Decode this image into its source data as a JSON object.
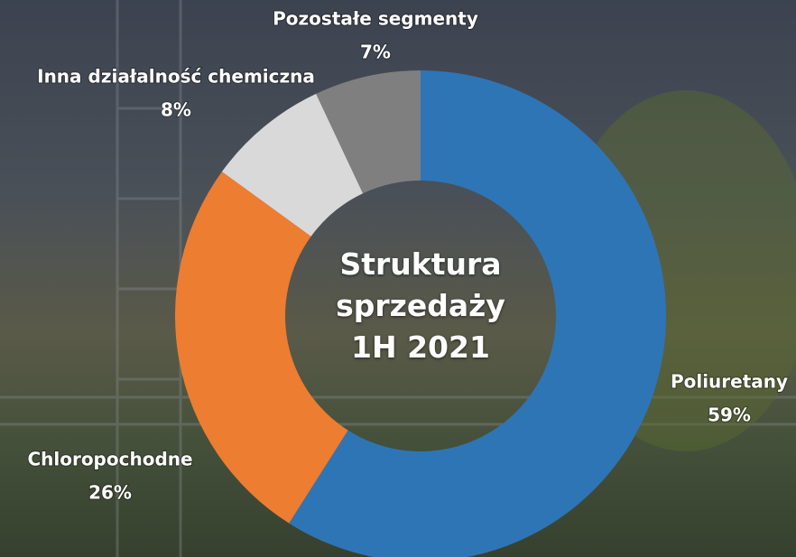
{
  "chart_data": {
    "type": "donut",
    "title": "Struktura sprzedaży 1H 2021",
    "categories": [
      "Poliuretany",
      "Chloropochodne",
      "Inna działalność chemiczna",
      "Pozostałe segmenty"
    ],
    "values": [
      59,
      26,
      8,
      7
    ],
    "value_labels": [
      "59%",
      "26%",
      "8%",
      "7%"
    ],
    "colors": [
      "#2e75b6",
      "#ed7d31",
      "#d9d9d9",
      "#7f7f7f"
    ]
  }
}
